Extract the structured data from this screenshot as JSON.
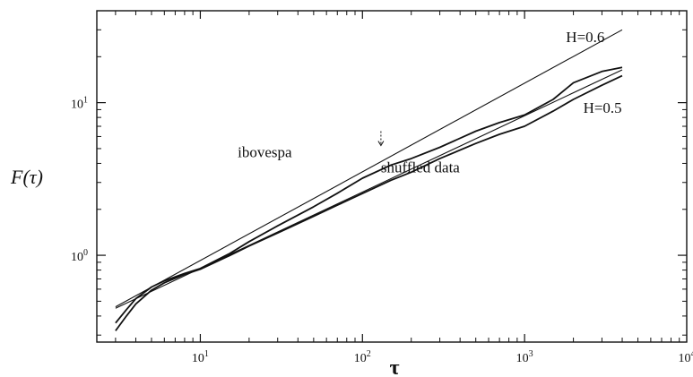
{
  "chart_data": {
    "type": "line",
    "title": "",
    "xlabel": "τ",
    "ylabel": "F(τ)",
    "x_scale": "log",
    "y_scale": "log",
    "xlim": [
      2.3,
      10000
    ],
    "ylim": [
      0.27,
      40
    ],
    "grid": false,
    "x_ticks": [
      {
        "value": 10,
        "base": "10",
        "exp": "1"
      },
      {
        "value": 100,
        "base": "10",
        "exp": "2"
      },
      {
        "value": 1000,
        "base": "10",
        "exp": "3"
      },
      {
        "value": 10000,
        "base": "10",
        "exp": "4"
      }
    ],
    "y_ticks": [
      {
        "value": 1,
        "base": "10",
        "exp": "0"
      },
      {
        "value": 10,
        "base": "10",
        "exp": "1"
      }
    ],
    "annotations": [
      {
        "text": "H=0.6",
        "x": 1800,
        "y": 25
      },
      {
        "text": "H=0.5",
        "x": 2300,
        "y": 8.6
      },
      {
        "text": "ibovespa",
        "x": 17,
        "y": 4.4
      },
      {
        "text": "shuffled data",
        "x": 130,
        "y": 3.5
      }
    ],
    "arrow_marker": {
      "x": 130,
      "y": 5.1
    },
    "series": [
      {
        "name": "ibovespa",
        "x": [
          3,
          3.5,
          4,
          5,
          6,
          8,
          10,
          15,
          20,
          30,
          50,
          70,
          100,
          150,
          200,
          300,
          500,
          700,
          1000,
          1500,
          2000,
          3000,
          4000
        ],
        "y": [
          0.36,
          0.44,
          0.52,
          0.62,
          0.68,
          0.76,
          0.82,
          1.02,
          1.23,
          1.56,
          2.08,
          2.55,
          3.2,
          3.9,
          4.3,
          5.1,
          6.5,
          7.4,
          8.3,
          10.5,
          13.5,
          16,
          17
        ]
      },
      {
        "name": "shuffled data",
        "x": [
          3,
          3.5,
          4,
          5,
          6,
          8,
          10,
          15,
          20,
          30,
          50,
          70,
          100,
          150,
          200,
          300,
          500,
          700,
          1000,
          1500,
          2000,
          3000,
          4000
        ],
        "y": [
          0.32,
          0.4,
          0.48,
          0.59,
          0.66,
          0.75,
          0.81,
          0.99,
          1.15,
          1.4,
          1.8,
          2.13,
          2.54,
          3.1,
          3.5,
          4.3,
          5.4,
          6.2,
          7.0,
          8.8,
          10.5,
          13,
          15
        ]
      },
      {
        "name": "H=0.6",
        "style": "fit",
        "x": [
          3,
          4000
        ],
        "y": [
          0.46,
          30
        ]
      },
      {
        "name": "H=0.5",
        "style": "fit",
        "x": [
          3,
          4000
        ],
        "y": [
          0.45,
          16.4
        ]
      }
    ]
  }
}
